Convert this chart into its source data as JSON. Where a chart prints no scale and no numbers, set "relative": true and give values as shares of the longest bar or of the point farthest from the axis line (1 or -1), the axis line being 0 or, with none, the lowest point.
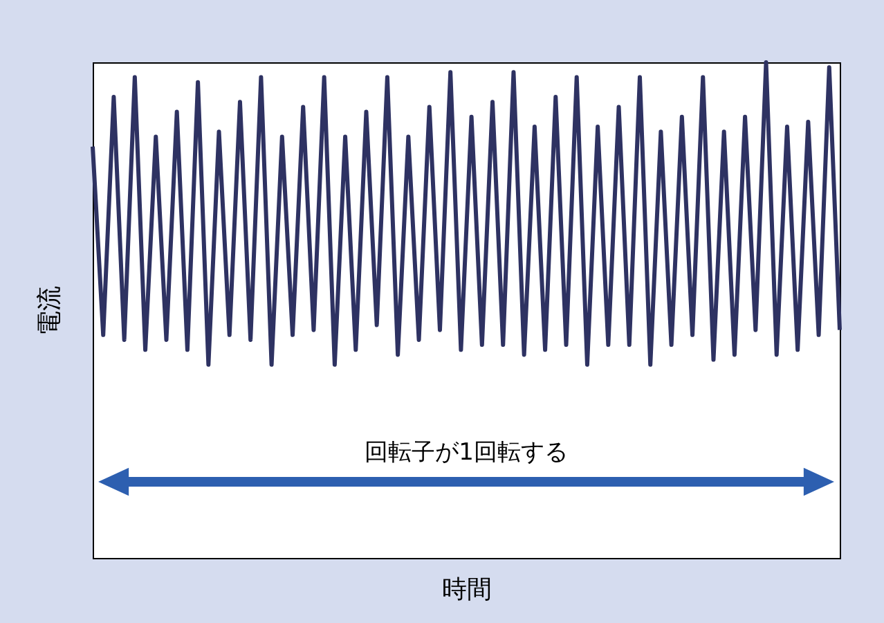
{
  "chart_data": {
    "type": "line",
    "relative": true,
    "xlabel": "時間",
    "ylabel": "電流",
    "categories": [
      null,
      null,
      null,
      null,
      null,
      null,
      null,
      null,
      null,
      null,
      null,
      null,
      null,
      null,
      null,
      null,
      null,
      null,
      null,
      null,
      null,
      null,
      null,
      null,
      null,
      null,
      null,
      null,
      null,
      null,
      null,
      null,
      null,
      null,
      null,
      null,
      null,
      null,
      null,
      null,
      null,
      null,
      null,
      null,
      null,
      null,
      null,
      null,
      null,
      null,
      null,
      null,
      null,
      null,
      null,
      null,
      null,
      null,
      null,
      null,
      null,
      null,
      null,
      null,
      null,
      null,
      null,
      null,
      null,
      null,
      null,
      null
    ],
    "series": [
      {
        "color": "#2e3262",
        "values": [
          0.83,
          0.45,
          0.93,
          0.44,
          0.97,
          0.42,
          0.85,
          0.44,
          0.9,
          0.42,
          0.96,
          0.39,
          0.86,
          0.45,
          0.92,
          0.44,
          0.97,
          0.39,
          0.85,
          0.45,
          0.91,
          0.46,
          0.97,
          0.39,
          0.85,
          0.42,
          0.9,
          0.47,
          0.97,
          0.41,
          0.85,
          0.44,
          0.91,
          0.46,
          0.98,
          0.42,
          0.89,
          0.43,
          0.92,
          0.43,
          0.98,
          0.41,
          0.87,
          0.42,
          0.93,
          0.43,
          0.97,
          0.39,
          0.87,
          0.43,
          0.91,
          0.43,
          0.97,
          0.39,
          0.86,
          0.43,
          0.89,
          0.45,
          0.97,
          0.4,
          0.86,
          0.41,
          0.89,
          0.46,
          1,
          0.41,
          0.87,
          0.42,
          0.88,
          0.45,
          0.99,
          0.46
        ]
      }
    ],
    "annotations": [
      "回転子が1回転する"
    ],
    "grid": false,
    "marker": "none",
    "line_style": "solid"
  }
}
